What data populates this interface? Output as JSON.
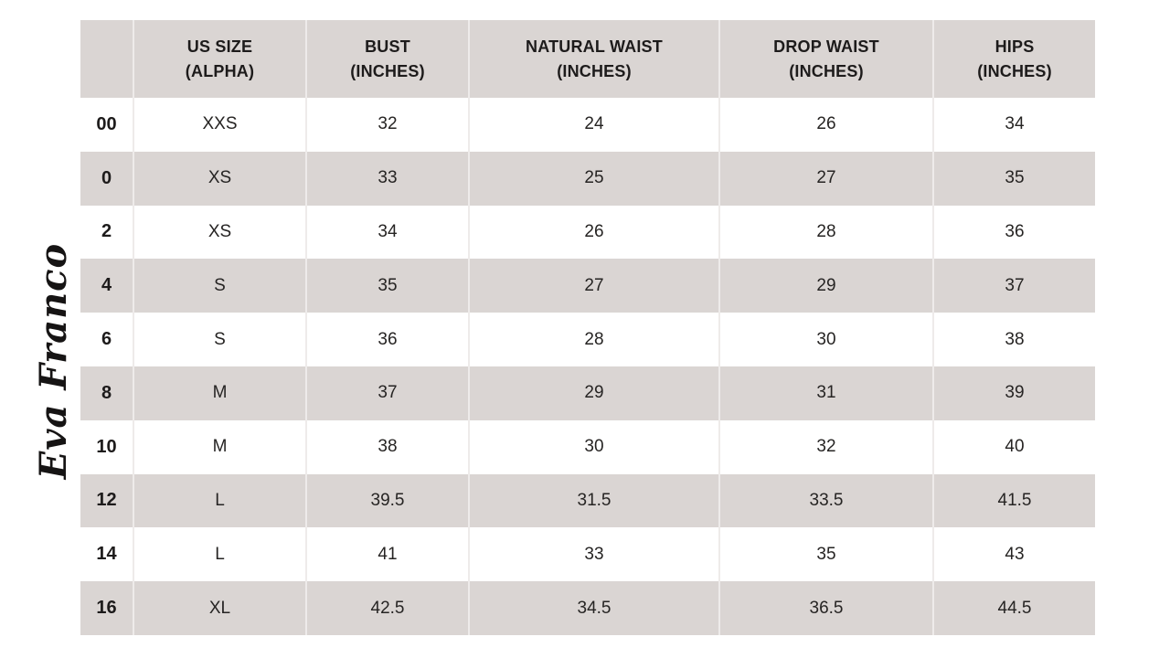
{
  "brand": {
    "logo_text": "Eva Franco"
  },
  "colors": {
    "page_bg": "#ffffff",
    "header_bg": "#dad5d3",
    "row_bg": "#ffffff",
    "row_alt_bg": "#dad5d3",
    "separator": "#eeebea",
    "text": "#262423"
  },
  "table": {
    "headers": [
      {
        "line1": "",
        "line2": ""
      },
      {
        "line1": "US SIZE",
        "line2": "(ALPHA)"
      },
      {
        "line1": "BUST",
        "line2": "(INCHES)"
      },
      {
        "line1": "NATURAL WAIST",
        "line2": "(INCHES)"
      },
      {
        "line1": "DROP WAIST",
        "line2": "(INCHES)"
      },
      {
        "line1": "HIPS",
        "line2": "(INCHES)"
      }
    ],
    "rows": [
      {
        "size": "00",
        "alpha": "XXS",
        "bust": "32",
        "natural_waist": "24",
        "drop_waist": "26",
        "hips": "34"
      },
      {
        "size": "0",
        "alpha": "XS",
        "bust": "33",
        "natural_waist": "25",
        "drop_waist": "27",
        "hips": "35"
      },
      {
        "size": "2",
        "alpha": "XS",
        "bust": "34",
        "natural_waist": "26",
        "drop_waist": "28",
        "hips": "36"
      },
      {
        "size": "4",
        "alpha": "S",
        "bust": "35",
        "natural_waist": "27",
        "drop_waist": "29",
        "hips": "37"
      },
      {
        "size": "6",
        "alpha": "S",
        "bust": "36",
        "natural_waist": "28",
        "drop_waist": "30",
        "hips": "38"
      },
      {
        "size": "8",
        "alpha": "M",
        "bust": "37",
        "natural_waist": "29",
        "drop_waist": "31",
        "hips": "39"
      },
      {
        "size": "10",
        "alpha": "M",
        "bust": "38",
        "natural_waist": "30",
        "drop_waist": "32",
        "hips": "40"
      },
      {
        "size": "12",
        "alpha": "L",
        "bust": "39.5",
        "natural_waist": "31.5",
        "drop_waist": "33.5",
        "hips": "41.5"
      },
      {
        "size": "14",
        "alpha": "L",
        "bust": "41",
        "natural_waist": "33",
        "drop_waist": "35",
        "hips": "43"
      },
      {
        "size": "16",
        "alpha": "XL",
        "bust": "42.5",
        "natural_waist": "34.5",
        "drop_waist": "36.5",
        "hips": "44.5"
      }
    ]
  },
  "chart_data": {
    "type": "table",
    "columns": [
      "",
      "US SIZE (ALPHA)",
      "BUST (INCHES)",
      "NATURAL WAIST (INCHES)",
      "DROP WAIST (INCHES)",
      "HIPS (INCHES)"
    ],
    "rows": [
      [
        "00",
        "XXS",
        32,
        24,
        26,
        34
      ],
      [
        "0",
        "XS",
        33,
        25,
        27,
        35
      ],
      [
        "2",
        "XS",
        34,
        26,
        28,
        36
      ],
      [
        "4",
        "S",
        35,
        27,
        29,
        37
      ],
      [
        "6",
        "S",
        36,
        28,
        30,
        38
      ],
      [
        "8",
        "M",
        37,
        29,
        31,
        39
      ],
      [
        "10",
        "M",
        38,
        30,
        32,
        40
      ],
      [
        "12",
        "L",
        39.5,
        31.5,
        33.5,
        41.5
      ],
      [
        "14",
        "L",
        41,
        33,
        35,
        43
      ],
      [
        "16",
        "XL",
        42.5,
        34.5,
        36.5,
        44.5
      ]
    ]
  }
}
